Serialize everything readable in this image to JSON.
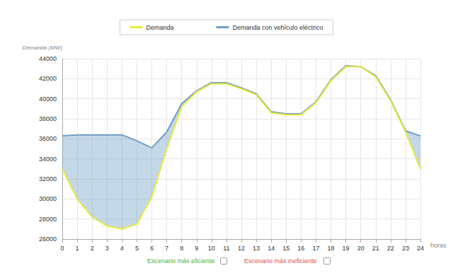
{
  "chart_data": {
    "type": "line",
    "y_label": "Demanda (MW)",
    "x_label": "horas",
    "x": [
      0,
      1,
      2,
      3,
      4,
      5,
      6,
      7,
      8,
      9,
      10,
      11,
      12,
      13,
      14,
      15,
      16,
      17,
      18,
      19,
      20,
      21,
      22,
      23,
      24
    ],
    "series": [
      {
        "name": "Demanda",
        "color": "#e8ea3c",
        "values": [
          33000,
          30000,
          28200,
          27300,
          27000,
          27500,
          30200,
          35000,
          39200,
          40700,
          41500,
          41500,
          41000,
          40400,
          38600,
          38400,
          38400,
          39600,
          41800,
          43200,
          43200,
          42200,
          39800,
          36700,
          33000
        ]
      },
      {
        "name": "Demanda con vehículo eléctrico",
        "color": "#6f9ec6",
        "values": [
          36300,
          36400,
          36400,
          36400,
          36400,
          35800,
          35100,
          36700,
          39500,
          40800,
          41600,
          41600,
          41100,
          40500,
          38700,
          38500,
          38500,
          39700,
          41900,
          43300,
          43200,
          42300,
          39900,
          36800,
          36300
        ]
      }
    ],
    "xlim": [
      0,
      24
    ],
    "xticks": [
      0,
      1,
      2,
      3,
      4,
      5,
      6,
      7,
      8,
      9,
      10,
      11,
      12,
      13,
      14,
      15,
      16,
      17,
      18,
      19,
      20,
      21,
      22,
      23,
      24
    ],
    "ylim": [
      26000,
      44000
    ],
    "yticks": [
      26000,
      28000,
      30000,
      32000,
      34000,
      36000,
      38000,
      40000,
      42000,
      44000
    ],
    "grid": true,
    "legend": "top",
    "annotations": [
      "Escenario más eficiente",
      "Escenario más ineficiente"
    ]
  }
}
